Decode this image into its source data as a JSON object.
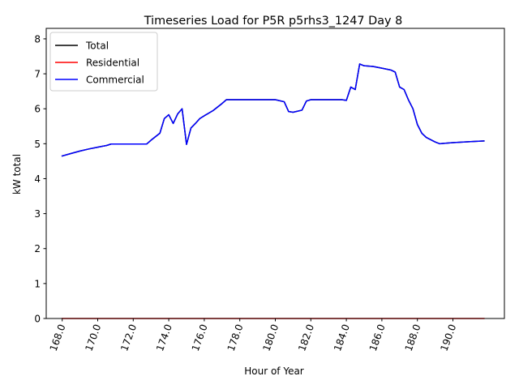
{
  "chart_data": {
    "type": "line",
    "title": "Timeseries Load for P5R p5rhs3_1247  Day 8",
    "xlabel": "Hour of Year",
    "ylabel": "kW total",
    "xlim": [
      167.1,
      192.9
    ],
    "ylim": [
      0,
      8.3
    ],
    "xticks": [
      168.0,
      170.0,
      172.0,
      174.0,
      176.0,
      178.0,
      180.0,
      182.0,
      184.0,
      186.0,
      188.0,
      190.0
    ],
    "xtick_labels": [
      "168.0",
      "170.0",
      "172.0",
      "174.0",
      "176.0",
      "178.0",
      "180.0",
      "182.0",
      "184.0",
      "186.0",
      "188.0",
      "190.0"
    ],
    "yticks": [
      0,
      1,
      2,
      3,
      4,
      5,
      6,
      7,
      8
    ],
    "ytick_labels": [
      "0",
      "1",
      "2",
      "3",
      "4",
      "5",
      "6",
      "7",
      "8"
    ],
    "grid": false,
    "legend_position": "top-left",
    "series": [
      {
        "name": "Total",
        "color": "#000000",
        "x": [
          168.0,
          168.5,
          169.0,
          169.5,
          170.0,
          170.5,
          170.75,
          171.0,
          171.5,
          172.0,
          172.5,
          172.75,
          173.0,
          173.5,
          173.75,
          174.0,
          174.25,
          174.5,
          174.75,
          175.0,
          175.25,
          175.5,
          175.75,
          176.0,
          176.5,
          177.0,
          177.25,
          177.5,
          178.0,
          178.5,
          179.0,
          179.5,
          180.0,
          180.5,
          180.75,
          181.0,
          181.5,
          181.75,
          182.0,
          182.5,
          183.0,
          183.5,
          183.75,
          184.0,
          184.25,
          184.5,
          184.75,
          185.0,
          185.5,
          186.0,
          186.5,
          186.75,
          187.0,
          187.25,
          187.5,
          187.75,
          188.0,
          188.25,
          188.5,
          189.0,
          189.25,
          189.5,
          190.0,
          191.0,
          191.75
        ],
        "values": [
          4.65,
          4.72,
          4.79,
          4.85,
          4.9,
          4.95,
          4.99,
          4.99,
          4.99,
          4.99,
          4.99,
          4.99,
          5.1,
          5.3,
          5.72,
          5.83,
          5.58,
          5.85,
          6.0,
          4.98,
          5.45,
          5.58,
          5.72,
          5.8,
          5.95,
          6.15,
          6.26,
          6.26,
          6.26,
          6.26,
          6.26,
          6.26,
          6.26,
          6.2,
          5.92,
          5.9,
          5.96,
          6.22,
          6.26,
          6.26,
          6.26,
          6.26,
          6.26,
          6.24,
          6.62,
          6.55,
          7.28,
          7.23,
          7.21,
          7.16,
          7.11,
          7.05,
          6.62,
          6.55,
          6.25,
          6.0,
          5.55,
          5.3,
          5.18,
          5.05,
          5.0,
          5.01,
          5.03,
          5.06,
          5.08
        ]
      },
      {
        "name": "Residential",
        "color": "#ff0000",
        "x": [
          168.0,
          191.75
        ],
        "values": [
          0.0,
          0.0
        ]
      },
      {
        "name": "Commercial",
        "color": "#0000ff",
        "x": [
          168.0,
          168.5,
          169.0,
          169.5,
          170.0,
          170.5,
          170.75,
          171.0,
          171.5,
          172.0,
          172.5,
          172.75,
          173.0,
          173.5,
          173.75,
          174.0,
          174.25,
          174.5,
          174.75,
          175.0,
          175.25,
          175.5,
          175.75,
          176.0,
          176.5,
          177.0,
          177.25,
          177.5,
          178.0,
          178.5,
          179.0,
          179.5,
          180.0,
          180.5,
          180.75,
          181.0,
          181.5,
          181.75,
          182.0,
          182.5,
          183.0,
          183.5,
          183.75,
          184.0,
          184.25,
          184.5,
          184.75,
          185.0,
          185.5,
          186.0,
          186.5,
          186.75,
          187.0,
          187.25,
          187.5,
          187.75,
          188.0,
          188.25,
          188.5,
          189.0,
          189.25,
          189.5,
          190.0,
          191.0,
          191.75
        ],
        "values": [
          4.65,
          4.72,
          4.79,
          4.85,
          4.9,
          4.95,
          4.99,
          4.99,
          4.99,
          4.99,
          4.99,
          4.99,
          5.1,
          5.3,
          5.72,
          5.83,
          5.58,
          5.85,
          6.0,
          4.98,
          5.45,
          5.58,
          5.72,
          5.8,
          5.95,
          6.15,
          6.26,
          6.26,
          6.26,
          6.26,
          6.26,
          6.26,
          6.26,
          6.2,
          5.92,
          5.9,
          5.96,
          6.22,
          6.26,
          6.26,
          6.26,
          6.26,
          6.26,
          6.24,
          6.62,
          6.55,
          7.28,
          7.23,
          7.21,
          7.16,
          7.11,
          7.05,
          6.62,
          6.55,
          6.25,
          6.0,
          5.55,
          5.3,
          5.18,
          5.05,
          5.0,
          5.01,
          5.03,
          5.06,
          5.08
        ]
      }
    ]
  }
}
